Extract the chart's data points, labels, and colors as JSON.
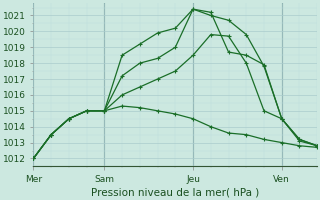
{
  "background_color": "#cce8e0",
  "grid_major_color": "#aacccc",
  "grid_minor_color": "#bbdddd",
  "line_color": "#1a6e28",
  "xlabel": "Pression niveau de la mer( hPa )",
  "ylim": [
    1011.5,
    1021.8
  ],
  "xlim": [
    0,
    16
  ],
  "yticks": [
    1012,
    1013,
    1014,
    1015,
    1016,
    1017,
    1018,
    1019,
    1020,
    1021
  ],
  "xtick_labels": [
    "Mer",
    "Sam",
    "Jeu",
    "Ven"
  ],
  "xtick_positions": [
    0,
    4,
    9,
    14
  ],
  "vline_positions": [
    0,
    4,
    9,
    14
  ],
  "series": [
    [
      1012,
      1013.5,
      1014.5,
      1015.0,
      1015.0,
      1018.5,
      1019.2,
      1019.9,
      1020.2,
      1021.4,
      1021.0,
      1020.7,
      1019.8,
      1017.8,
      1014.5,
      1013.2,
      1012.8
    ],
    [
      1012,
      1013.5,
      1014.5,
      1015.0,
      1015.0,
      1017.2,
      1018.0,
      1018.3,
      1019.0,
      1021.4,
      1021.2,
      1018.7,
      1018.5,
      1017.9,
      1014.5,
      1013.1,
      1012.8
    ],
    [
      1012,
      1013.5,
      1014.5,
      1015.0,
      1015.0,
      1016.0,
      1016.5,
      1017.0,
      1017.5,
      1018.5,
      1019.8,
      1019.7,
      1018.0,
      1015.0,
      1014.5,
      1013.2,
      1012.8
    ],
    [
      1012,
      1013.5,
      1014.5,
      1015.0,
      1015.0,
      1015.3,
      1015.2,
      1015.0,
      1014.8,
      1014.5,
      1014.0,
      1013.6,
      1013.5,
      1013.2,
      1013.0,
      1012.8,
      1012.7
    ]
  ],
  "n_points": 17,
  "xlabel_fontsize": 7.5,
  "tick_fontsize": 6.5,
  "linewidth": 0.9,
  "markersize": 3.5
}
